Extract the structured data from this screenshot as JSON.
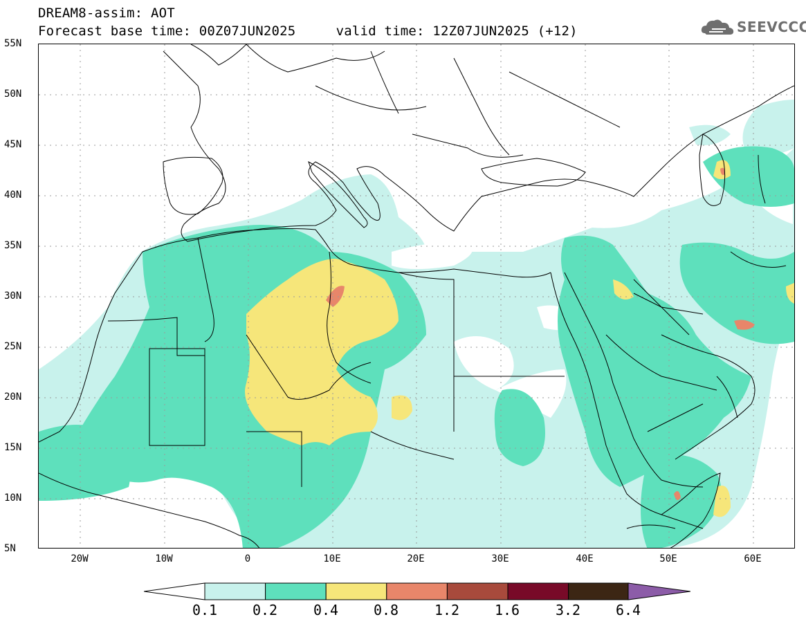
{
  "header": {
    "line1": "DREAM8-assim: AOT",
    "line2": "Forecast base time: 00Z07JUN2025     valid time: 12Z07JUN2025 (+12)"
  },
  "logo": {
    "text": "SEEVCCC",
    "icon": "cloud-logo-icon"
  },
  "map": {
    "lat_labels": [
      "55N",
      "50N",
      "45N",
      "40N",
      "35N",
      "30N",
      "25N",
      "20N",
      "15N",
      "10N",
      "5N"
    ],
    "lon_labels": [
      "20W",
      "10W",
      "0",
      "10E",
      "20E",
      "30E",
      "40E",
      "50E",
      "60E"
    ],
    "extent": {
      "lon_min": -25,
      "lon_max": 65,
      "lat_min": 5,
      "lat_max": 55
    }
  },
  "colorbar": {
    "levels": [
      "0.1",
      "0.2",
      "0.4",
      "0.8",
      "1.2",
      "1.6",
      "3.2",
      "6.4"
    ],
    "colors": [
      "#c8f2ec",
      "#5ee0bc",
      "#f6e67a",
      "#e8866a",
      "#a84a3c",
      "#780a28",
      "#3c2614",
      "#8c5ca8"
    ]
  }
}
